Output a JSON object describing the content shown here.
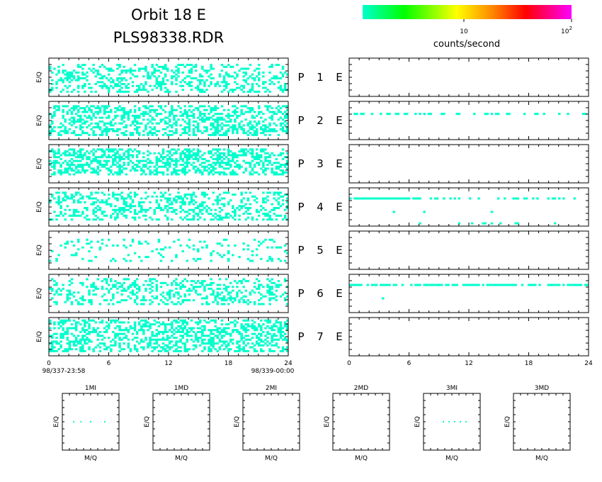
{
  "header": {
    "title_line1": "Orbit 18 E",
    "title_line2": "PLS98338.RDR"
  },
  "colorbar": {
    "stops": [
      "#00ffcc",
      "#00ff00",
      "#ffff00",
      "#ff8800",
      "#ff0000",
      "#ff00ff"
    ],
    "tick_10": "10",
    "tick_100_base": "10",
    "tick_100_exp": "2",
    "label": "counts/second",
    "scale": "log"
  },
  "chart_data": [
    {
      "type": "heatmap",
      "group": "left-column spectrograms",
      "ylabel": "E/Q",
      "xlim": [
        0,
        24
      ],
      "xticks": [
        "0",
        "6",
        "12",
        "18",
        "24"
      ],
      "time_start": "98/337-23:58",
      "time_end": "98/339-00:00",
      "color": "#00ffcc",
      "panels": [
        {
          "label": "P 1 E",
          "density": 0.3,
          "rows": [
            3,
            18
          ],
          "band": [
            0,
            24
          ]
        },
        {
          "label": "P 2 E",
          "density": 0.42,
          "rows": [
            2,
            18
          ],
          "band": [
            0,
            24
          ]
        },
        {
          "label": "P 3 E",
          "density": 0.45,
          "rows": [
            2,
            16
          ],
          "band": [
            0,
            24
          ]
        },
        {
          "label": "P 4 E",
          "density": 0.3,
          "rows": [
            2,
            17
          ],
          "band": [
            0,
            24
          ]
        },
        {
          "label": "P 5 E",
          "density": 0.13,
          "rows": [
            4,
            16
          ],
          "band": [
            0,
            24
          ]
        },
        {
          "label": "P 6 E",
          "density": 0.28,
          "rows": [
            2,
            16
          ],
          "band": [
            0,
            24
          ]
        },
        {
          "label": "P 7 E",
          "density": 0.4,
          "rows": [
            1,
            18
          ],
          "band": [
            0,
            24
          ]
        }
      ]
    },
    {
      "type": "heatmap",
      "group": "right-column spectrograms",
      "xlim": [
        0,
        24
      ],
      "xticks": [
        "0",
        "6",
        "12",
        "18",
        "24"
      ],
      "color": "#00ffcc",
      "panels": [
        {
          "label": "P 1 E",
          "events": []
        },
        {
          "label": "P 2 E",
          "events": [
            {
              "row": 6,
              "from": 0,
              "to": 24,
              "density": 0.3
            }
          ]
        },
        {
          "label": "P 3 E",
          "events": []
        },
        {
          "label": "P 4 E",
          "events": [
            {
              "row": 5,
              "from": 0,
              "to": 7,
              "density": 0.85
            },
            {
              "row": 5,
              "from": 7,
              "to": 23,
              "density": 0.28
            },
            {
              "row": 12,
              "from": 1,
              "to": 22,
              "density": 0.05
            },
            {
              "row": 18,
              "from": 4,
              "to": 23,
              "density": 0.06
            }
          ]
        },
        {
          "label": "P 5 E",
          "events": []
        },
        {
          "label": "P 6 E",
          "events": [
            {
              "row": 5,
              "from": 0,
              "to": 24,
              "density": 0.75
            },
            {
              "row": 8,
              "from": 2,
              "to": 4,
              "density": 0.15
            },
            {
              "row": 12,
              "from": 2.5,
              "to": 3.5,
              "density": 0.3
            }
          ]
        },
        {
          "label": "P 7 E",
          "events": []
        }
      ]
    },
    {
      "type": "scatter",
      "group": "mass spectra",
      "xlabel": "M/Q",
      "ylabel": "E/Q",
      "color": "#00ffcc",
      "panels": [
        {
          "title": "1MI",
          "points": [
            [
              0.2,
              0.5
            ],
            [
              0.33,
              0.5
            ],
            [
              0.5,
              0.5
            ],
            [
              0.75,
              0.5
            ]
          ]
        },
        {
          "title": "1MD",
          "points": []
        },
        {
          "title": "2MI",
          "points": []
        },
        {
          "title": "2MD",
          "points": []
        },
        {
          "title": "3MI",
          "points": [
            [
              0.35,
              0.5
            ],
            [
              0.45,
              0.5
            ],
            [
              0.55,
              0.5
            ],
            [
              0.65,
              0.5
            ],
            [
              0.75,
              0.5
            ]
          ]
        },
        {
          "title": "3MD",
          "points": []
        }
      ]
    }
  ]
}
